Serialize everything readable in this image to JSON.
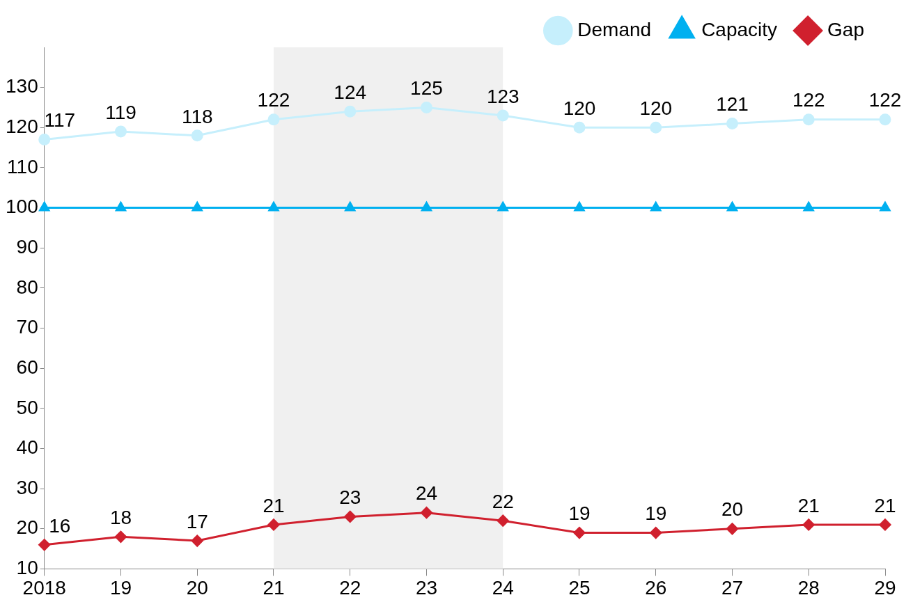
{
  "chart_data": {
    "type": "line",
    "categories": [
      "2018",
      "19",
      "20",
      "21",
      "22",
      "23",
      "24",
      "25",
      "26",
      "27",
      "28",
      "29"
    ],
    "series": [
      {
        "name": "Demand",
        "color": "#c6effc",
        "marker": "circle",
        "values": [
          117,
          119,
          118,
          122,
          124,
          125,
          123,
          120,
          120,
          121,
          122,
          122
        ],
        "value_labels": [
          "117",
          "119",
          "118",
          "122",
          "124",
          "125",
          "123",
          "120",
          "120",
          "121",
          "122",
          "122"
        ]
      },
      {
        "name": "Capacity",
        "color": "#00b0f0",
        "marker": "triangle",
        "values": [
          100,
          100,
          100,
          100,
          100,
          100,
          100,
          100,
          100,
          100,
          100,
          100
        ]
      },
      {
        "name": "Gap",
        "color": "#d0202e",
        "marker": "diamond",
        "values": [
          16,
          18,
          17,
          21,
          23,
          24,
          22,
          19,
          19,
          20,
          21,
          21
        ],
        "value_labels": [
          "16",
          "18",
          "17",
          "21",
          "23",
          "24",
          "22",
          "19",
          "19",
          "20",
          "21",
          "21"
        ]
      }
    ],
    "ylim": [
      10,
      140
    ],
    "yticks": [
      10,
      20,
      30,
      40,
      50,
      60,
      70,
      80,
      90,
      100,
      110,
      120,
      130
    ],
    "bands": [
      {
        "axis": "x",
        "from": "21",
        "to": "24",
        "color": "#f0f0f0"
      }
    ],
    "legend": "top right",
    "grid": false,
    "line_style": "solid"
  }
}
